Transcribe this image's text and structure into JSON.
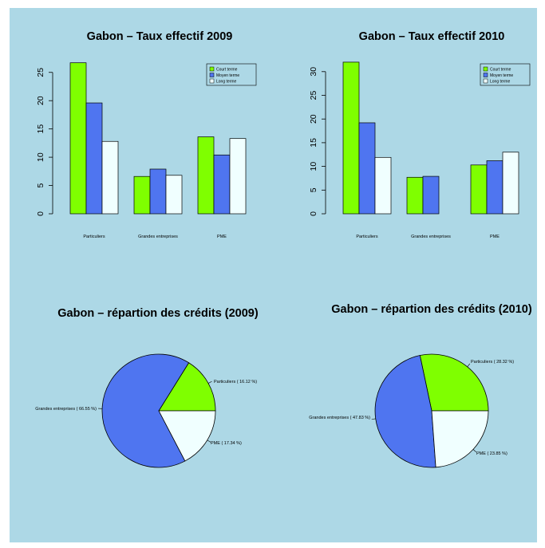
{
  "colors": {
    "background": "#add8e6",
    "court_terme": "#7fff00",
    "moyen_terme": "#4f75f0",
    "long_terme": "#f0ffff"
  },
  "chart_data": [
    {
      "type": "bar",
      "title": "Gabon – Taux effectif 2009",
      "categories": [
        "Particuliers",
        "Grandes entreprises",
        "PME"
      ],
      "series": [
        {
          "name": "Court terme",
          "values": [
            26.7,
            6.6,
            13.6
          ]
        },
        {
          "name": "Moyen terme",
          "values": [
            19.6,
            7.9,
            10.4
          ]
        },
        {
          "name": "Long terme",
          "values": [
            12.8,
            6.8,
            13.3
          ]
        }
      ],
      "yticks": [
        "0",
        "5",
        "10",
        "15",
        "20",
        "25"
      ],
      "ylim": [
        0,
        27
      ],
      "legend": "top-right"
    },
    {
      "type": "bar",
      "title": "Gabon – Taux effectif 2010",
      "categories": [
        "Particuliers",
        "Grandes entreprises",
        "PME"
      ],
      "series": [
        {
          "name": "Court terme",
          "values": [
            32.0,
            7.7,
            10.3
          ]
        },
        {
          "name": "Moyen terme",
          "values": [
            19.2,
            7.9,
            11.2
          ]
        },
        {
          "name": "Long terme",
          "values": [
            11.9,
            null,
            13.0
          ]
        }
      ],
      "yticks": [
        "0",
        "5",
        "10",
        "15",
        "20",
        "25",
        "30"
      ],
      "ylim": [
        0,
        32
      ],
      "legend": "top-right"
    },
    {
      "type": "pie",
      "title": "Gabon – répartion des crédits (2009)",
      "slices": [
        {
          "label": "Particuliers ( 16.12 %)",
          "value": 16.12,
          "color": "#7fff00"
        },
        {
          "label": "Grandes entreprises ( 66.55 %)",
          "value": 66.55,
          "color": "#4f75f0"
        },
        {
          "label": "PME ( 17.34 %)",
          "value": 17.34,
          "color": "#f0ffff"
        }
      ]
    },
    {
      "type": "pie",
      "title": "Gabon – répartion des crédits (2010)",
      "slices": [
        {
          "label": "Particuliers ( 28.32 %)",
          "value": 28.32,
          "color": "#7fff00"
        },
        {
          "label": "Grandes entreprises ( 47.83 %)",
          "value": 47.83,
          "color": "#4f75f0"
        },
        {
          "label": "PME ( 23.85 %)",
          "value": 23.85,
          "color": "#f0ffff"
        }
      ]
    }
  ]
}
